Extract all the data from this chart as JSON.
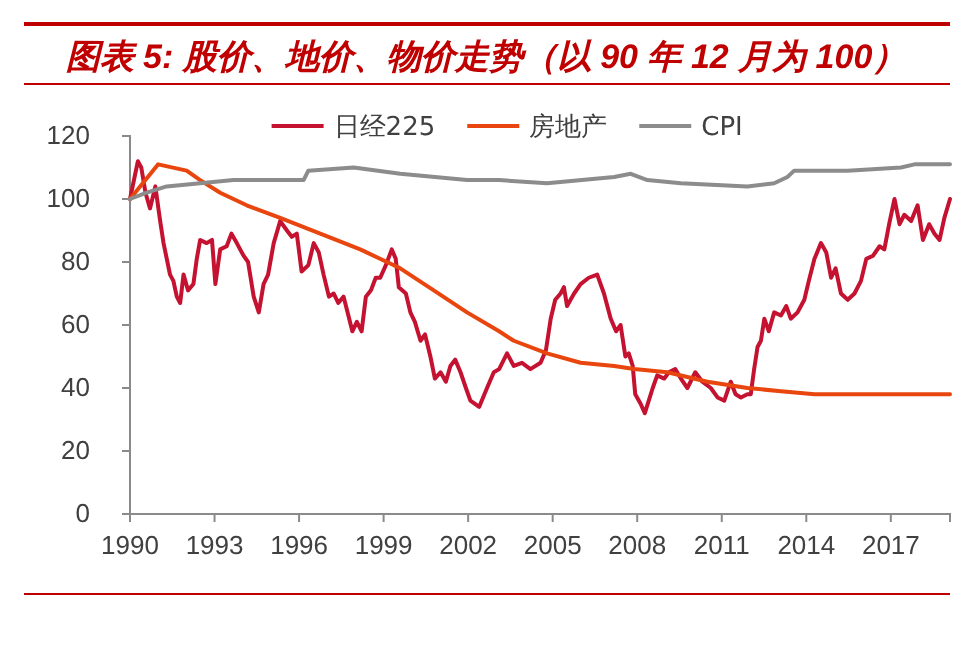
{
  "chart_data": {
    "type": "line",
    "title": "图表 5: 股价、地价、物价走势（以 90 年 12 月为 100）",
    "xlim": [
      1990,
      2019.1
    ],
    "xticks": [
      1990,
      1993,
      1996,
      1999,
      2002,
      2005,
      2008,
      2011,
      2014,
      2017
    ],
    "ylim": [
      0,
      120
    ],
    "yticks": [
      0,
      20,
      40,
      60,
      80,
      100,
      120
    ],
    "legend": "top",
    "series": [
      {
        "name": "日经225",
        "color": "#c41230",
        "x": [
          1990.0,
          1990.28,
          1990.4,
          1990.55,
          1990.71,
          1990.9,
          1991.07,
          1991.19,
          1991.42,
          1991.54,
          1991.66,
          1991.78,
          1991.9,
          1992.06,
          1992.25,
          1992.37,
          1992.49,
          1992.72,
          1992.91,
          1993.03,
          1993.2,
          1993.43,
          1993.6,
          1993.79,
          1994.03,
          1994.19,
          1994.39,
          1994.57,
          1994.74,
          1994.9,
          1995.1,
          1995.33,
          1995.57,
          1995.74,
          1995.92,
          1996.09,
          1996.33,
          1996.52,
          1996.7,
          1996.87,
          1997.06,
          1997.23,
          1997.39,
          1997.58,
          1997.75,
          1997.89,
          1998.05,
          1998.22,
          1998.37,
          1998.55,
          1998.72,
          1998.88,
          1999.08,
          1999.29,
          1999.43,
          1999.54,
          1999.79,
          1999.95,
          2000.11,
          2000.31,
          2000.47,
          2000.66,
          2000.82,
          2001.02,
          2001.21,
          2001.37,
          2001.54,
          2001.73,
          2001.92,
          2002.08,
          2002.39,
          2002.67,
          2002.91,
          2003.1,
          2003.38,
          2003.62,
          2003.91,
          2004.21,
          2004.57,
          2004.76,
          2004.93,
          2005.09,
          2005.28,
          2005.4,
          2005.51,
          2005.76,
          2005.99,
          2006.28,
          2006.58,
          2006.82,
          2007.06,
          2007.25,
          2007.41,
          2007.58,
          2007.7,
          2007.84,
          2007.93,
          2008.12,
          2008.27,
          2008.41,
          2008.55,
          2008.71,
          2008.96,
          2009.12,
          2009.35,
          2009.55,
          2009.78,
          2010.06,
          2010.31,
          2010.61,
          2010.85,
          2011.09,
          2011.32,
          2011.49,
          2011.68,
          2011.91,
          2012.03,
          2012.15,
          2012.27,
          2012.39,
          2012.51,
          2012.67,
          2012.86,
          2013.1,
          2013.29,
          2013.45,
          2013.69,
          2013.93,
          2014.09,
          2014.29,
          2014.52,
          2014.71,
          2014.88,
          2015.04,
          2015.23,
          2015.47,
          2015.71,
          2015.94,
          2016.13,
          2016.37,
          2016.6,
          2016.77,
          2016.94,
          2017.13,
          2017.31,
          2017.48,
          2017.72,
          2017.95,
          2018.14,
          2018.36,
          2018.55,
          2018.73,
          2018.9,
          2019.1
        ],
        "values": [
          100,
          112,
          110,
          102,
          97,
          104,
          93,
          86,
          76,
          74,
          69,
          67,
          76,
          71,
          73,
          81,
          87,
          86,
          87,
          73,
          84,
          85,
          89,
          86,
          82,
          80,
          69,
          64,
          73,
          76,
          86,
          93,
          90,
          88,
          89,
          77,
          79,
          86,
          83,
          76,
          69,
          70,
          67,
          69,
          63,
          58,
          61,
          58,
          69,
          71,
          75,
          75,
          79,
          84,
          81,
          72,
          70,
          64,
          61,
          55,
          57,
          50,
          43,
          45,
          42,
          47,
          49,
          45,
          40,
          36,
          34,
          40,
          45,
          46,
          51,
          47,
          48,
          46,
          48,
          52,
          62,
          68,
          70,
          72,
          66,
          70,
          73,
          75,
          76,
          70,
          62,
          58,
          60,
          50,
          51,
          47,
          38,
          35,
          32,
          36,
          40,
          44,
          43,
          45,
          46,
          43,
          40,
          45,
          42,
          40,
          37,
          36,
          42,
          38,
          37,
          38,
          38,
          46,
          53,
          55,
          62,
          58,
          64,
          63,
          66,
          62,
          64,
          68,
          74,
          81,
          86,
          83,
          75,
          78,
          70,
          68,
          70,
          74,
          81,
          82,
          85,
          84,
          92,
          100,
          92,
          95,
          93,
          98,
          87,
          92,
          89,
          87,
          94,
          100
        ]
      },
      {
        "name": "房地产",
        "color": "#e8460e",
        "x": [
          1990,
          1991.0,
          1992.01,
          1992.49,
          1993.2,
          1994.14,
          1995.33,
          1996.75,
          1998.17,
          1999.59,
          2000.78,
          2001.96,
          2003.1,
          2003.62,
          2004.8,
          2005.99,
          2007.18,
          2007.89,
          2009.07,
          2010.49,
          2011.91,
          2013.1,
          2014.29,
          2015.71,
          2017.13,
          2019.1
        ],
        "values": [
          100,
          111,
          109,
          106,
          102,
          98,
          94,
          89,
          84,
          78,
          71,
          64,
          58,
          55,
          51,
          48,
          47,
          46,
          45,
          42,
          40,
          39,
          38,
          38,
          38,
          38
        ]
      },
      {
        "name": "CPI",
        "color": "#8c8c8c",
        "x": [
          1990,
          1990.59,
          1991.3,
          1992.49,
          1993.67,
          1994.97,
          1996.16,
          1996.33,
          1997.94,
          1999.59,
          2001.96,
          2003.1,
          2004.8,
          2007.18,
          2007.77,
          2008.36,
          2009.55,
          2011.91,
          2012.86,
          2013.33,
          2013.57,
          2015.47,
          2017.36,
          2017.84,
          2019.1
        ],
        "values": [
          100,
          102,
          104,
          105,
          106,
          106,
          106,
          109,
          110,
          108,
          106,
          106,
          105,
          107,
          108,
          106,
          105,
          104,
          105,
          107,
          109,
          109,
          110,
          111,
          111
        ]
      }
    ]
  }
}
